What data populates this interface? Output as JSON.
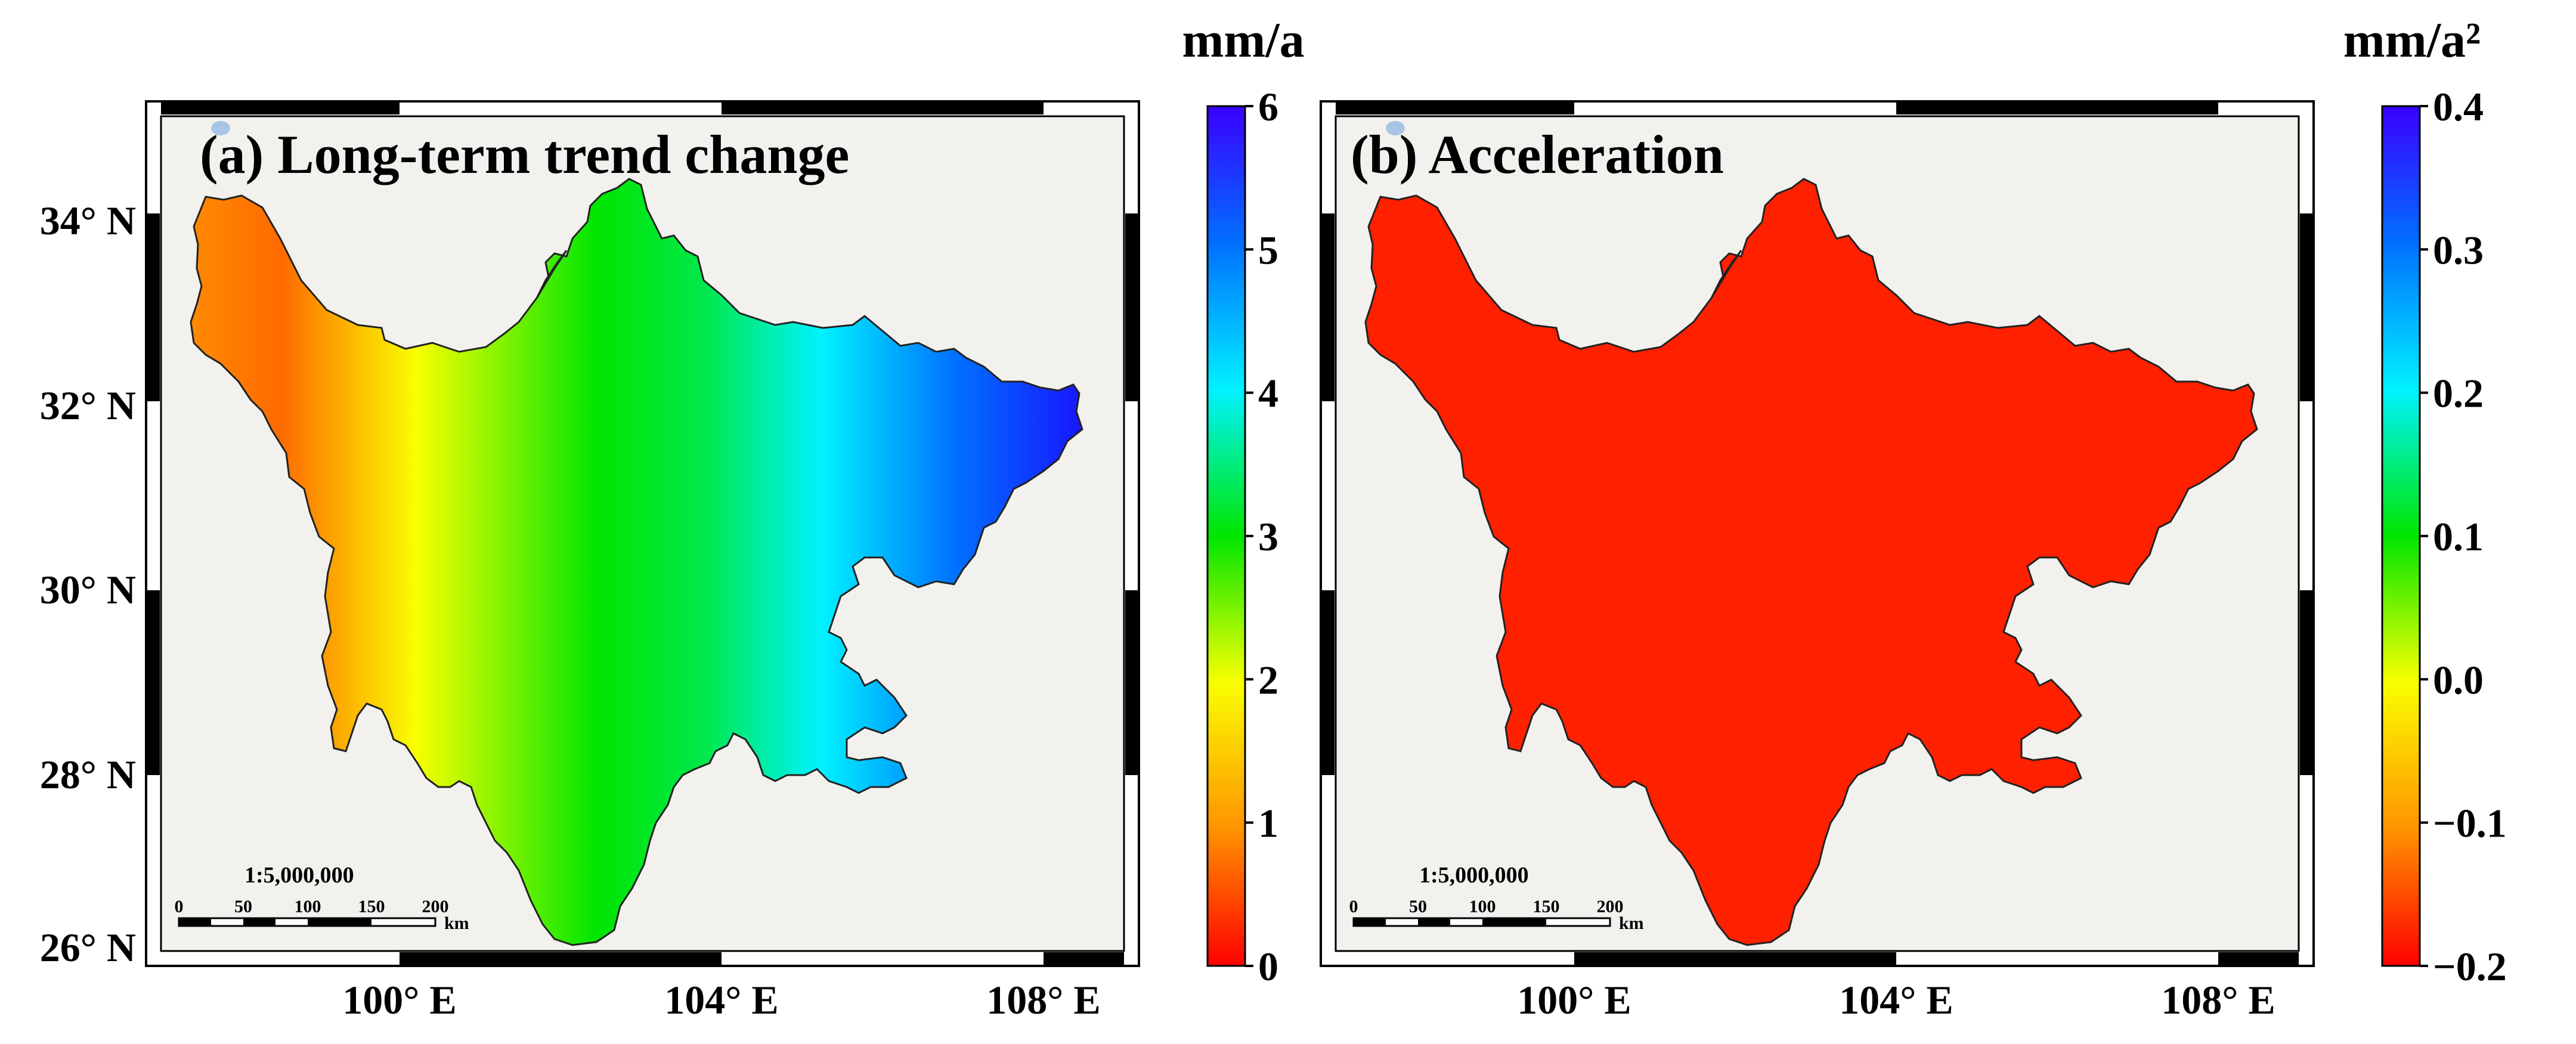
{
  "panels": [
    {
      "id": "a",
      "title": "(a) Long-term trend change",
      "colorbar_unit": "mm/a",
      "colorbar_ticks": [
        "0",
        "1",
        "2",
        "3",
        "4",
        "5",
        "6"
      ],
      "colorbar_range": [
        0,
        6
      ],
      "scale_label": "1:5,000,000",
      "scale_ticks": [
        "0",
        "50",
        "100",
        "150",
        "200"
      ],
      "scale_unit": "km",
      "lat_labels": [
        "34° N",
        "32° N",
        "30° N",
        "28° N",
        "26° N"
      ],
      "lon_labels": [
        "100° E",
        "104° E",
        "108° E"
      ]
    },
    {
      "id": "b",
      "title": "(b) Acceleration",
      "colorbar_unit": "mm/a²",
      "colorbar_ticks": [
        "−0.2",
        "−0.1",
        "0.0",
        "0.1",
        "0.2",
        "0.3",
        "0.4"
      ],
      "colorbar_range": [
        -0.2,
        0.4
      ],
      "scale_label": "1:5,000,000",
      "scale_ticks": [
        "0",
        "50",
        "100",
        "150",
        "200"
      ],
      "scale_unit": "km",
      "lat_labels": [],
      "lon_labels": [
        "100° E",
        "104° E",
        "108° E"
      ]
    }
  ],
  "colors": {
    "map_background": "#f2f1ee",
    "region_outline": "#222222",
    "colormap": [
      "#ff0000",
      "#ff9400",
      "#f9ff00",
      "#00e600",
      "#00f2ff",
      "#0070ff",
      "#3a00ff"
    ]
  }
}
